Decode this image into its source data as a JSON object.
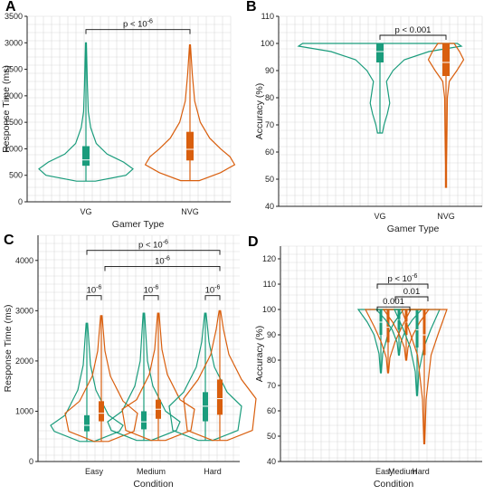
{
  "colors": {
    "vg": "#1a9c7c",
    "nvg": "#d95f0e",
    "grid": "#d9d9d9",
    "axis": "#222222"
  },
  "chart_data": [
    {
      "panel": "A",
      "type": "violin",
      "xlabel": "Gamer Type",
      "ylabel": "Response Time (ms)",
      "ylim": [
        0,
        3500
      ],
      "yticks": [
        0,
        500,
        1000,
        1500,
        2000,
        2500,
        3000,
        3500
      ],
      "grid": true,
      "categories": [
        "VG",
        "NVG"
      ],
      "series": [
        {
          "group": "VG",
          "color": "vg",
          "q1": 680,
          "median": 790,
          "q3": 1050,
          "min": 390,
          "max": 3000,
          "density": [
            [
              390,
              0.2
            ],
            [
              500,
              0.85
            ],
            [
              620,
              1.0
            ],
            [
              750,
              0.8
            ],
            [
              900,
              0.45
            ],
            [
              1100,
              0.22
            ],
            [
              1400,
              0.1
            ],
            [
              1700,
              0.05
            ],
            [
              2200,
              0.03
            ],
            [
              3000,
              0.01
            ]
          ]
        },
        {
          "group": "NVG",
          "color": "nvg",
          "q1": 780,
          "median": 990,
          "q3": 1320,
          "min": 400,
          "max": 2960,
          "density": [
            [
              400,
              0.2
            ],
            [
              550,
              0.65
            ],
            [
              700,
              0.95
            ],
            [
              850,
              0.85
            ],
            [
              1000,
              0.65
            ],
            [
              1200,
              0.42
            ],
            [
              1500,
              0.22
            ],
            [
              1900,
              0.1
            ],
            [
              2400,
              0.05
            ],
            [
              2960,
              0.01
            ]
          ]
        }
      ],
      "annotations": [
        {
          "text": "p < 10",
          "sup": "-6",
          "from": "VG",
          "to": "NVG",
          "y": 3250
        }
      ]
    },
    {
      "panel": "B",
      "type": "violin",
      "xlabel": "Gamer Type",
      "ylabel": "Accuracy (%)",
      "ylim": [
        40,
        110
      ],
      "yticks": [
        40,
        50,
        60,
        70,
        80,
        90,
        100,
        110
      ],
      "grid": true,
      "categories": [
        "VG",
        "NVG"
      ],
      "series": [
        {
          "group": "VG",
          "color": "vg",
          "q1": 93,
          "median": 97,
          "q3": 100,
          "min": 67,
          "max": 100,
          "density": [
            [
              67,
              0.03
            ],
            [
              70,
              0.05
            ],
            [
              74,
              0.09
            ],
            [
              78,
              0.12
            ],
            [
              82,
              0.1
            ],
            [
              86,
              0.08
            ],
            [
              90,
              0.16
            ],
            [
              94,
              0.3
            ],
            [
              97,
              0.6
            ],
            [
              99,
              1.0
            ],
            [
              100,
              0.95
            ]
          ]
        },
        {
          "group": "NVG",
          "color": "nvg",
          "q1": 88,
          "median": 93,
          "q3": 100,
          "min": 47,
          "max": 100,
          "density": [
            [
              47,
              0.02
            ],
            [
              55,
              0.02
            ],
            [
              62,
              0.03
            ],
            [
              70,
              0.04
            ],
            [
              80,
              0.05
            ],
            [
              86,
              0.12
            ],
            [
              90,
              0.4
            ],
            [
              94,
              0.65
            ],
            [
              97,
              0.5
            ],
            [
              100,
              0.3
            ]
          ]
        }
      ],
      "annotations": [
        {
          "text": "p < 0.001",
          "sup": "",
          "from": "VG",
          "to": "NVG",
          "y": 103
        }
      ]
    },
    {
      "panel": "C",
      "type": "violin",
      "xlabel": "Condition",
      "ylabel": "Response Time (ms)",
      "ylim": [
        0,
        4500
      ],
      "yticks": [
        0,
        1000,
        2000,
        3000,
        4000
      ],
      "grid": true,
      "categories": [
        "Easy",
        "Medium",
        "Hard"
      ],
      "series": [
        {
          "group": "Easy",
          "subgroup": "VG",
          "color": "vg",
          "q1": 600,
          "median": 720,
          "q3": 920,
          "min": 400,
          "max": 2750
        },
        {
          "group": "Easy",
          "subgroup": "NVG",
          "color": "nvg",
          "q1": 800,
          "median": 960,
          "q3": 1200,
          "min": 400,
          "max": 2900
        },
        {
          "group": "Medium",
          "subgroup": "VG",
          "color": "vg",
          "q1": 640,
          "median": 790,
          "q3": 1000,
          "min": 420,
          "max": 2950
        },
        {
          "group": "Medium",
          "subgroup": "NVG",
          "color": "nvg",
          "q1": 850,
          "median": 1040,
          "q3": 1230,
          "min": 420,
          "max": 2950
        },
        {
          "group": "Hard",
          "subgroup": "VG",
          "color": "vg",
          "q1": 800,
          "median": 1100,
          "q3": 1380,
          "min": 420,
          "max": 2950
        },
        {
          "group": "Hard",
          "subgroup": "NVG",
          "color": "nvg",
          "q1": 930,
          "median": 1250,
          "q3": 1630,
          "min": 420,
          "max": 3000
        }
      ],
      "annotations": [
        {
          "text": "p < 10",
          "sup": "-6",
          "from": "Easy",
          "to": "Hard",
          "y": 4200
        },
        {
          "text": "10",
          "sup": "-6",
          "from": "Easy-NVG",
          "to": "Hard",
          "y": 3880
        },
        {
          "text": "10",
          "sup": "-6",
          "pair": "Easy",
          "y": 3300
        },
        {
          "text": "10",
          "sup": "-6",
          "pair": "Medium",
          "y": 3300
        },
        {
          "text": "10",
          "sup": "-6",
          "pair": "Hard",
          "y": 3300
        }
      ]
    },
    {
      "panel": "D",
      "type": "violin",
      "xlabel": "Condition",
      "ylabel": "Accuracy (%)",
      "ylim": [
        40,
        125
      ],
      "yticks": [
        40,
        50,
        60,
        70,
        80,
        90,
        100,
        110,
        120
      ],
      "grid": true,
      "categories": [
        "Easy",
        "Medium",
        "Hard"
      ],
      "series": [
        {
          "group": "Easy",
          "subgroup": "VG",
          "color": "vg",
          "q1": 90,
          "median": 95,
          "q3": 100,
          "min": 75,
          "max": 100
        },
        {
          "group": "Easy",
          "subgroup": "NVG",
          "color": "nvg",
          "q1": 87,
          "median": 93,
          "q3": 100,
          "min": 75,
          "max": 100
        },
        {
          "group": "Medium",
          "subgroup": "VG",
          "color": "vg",
          "q1": 92,
          "median": 96,
          "q3": 100,
          "min": 82,
          "max": 100
        },
        {
          "group": "Medium",
          "subgroup": "NVG",
          "color": "nvg",
          "q1": 90,
          "median": 95,
          "q3": 100,
          "min": 80,
          "max": 100
        },
        {
          "group": "Hard",
          "subgroup": "VG",
          "color": "vg",
          "q1": 85,
          "median": 92,
          "q3": 100,
          "min": 66,
          "max": 100
        },
        {
          "group": "Hard",
          "subgroup": "NVG",
          "color": "nvg",
          "q1": 82,
          "median": 90,
          "q3": 100,
          "min": 47,
          "max": 100
        }
      ],
      "annotations": [
        {
          "text": "p < 10",
          "sup": "-6",
          "from": "Easy",
          "to": "Hard",
          "y": 110
        },
        {
          "text": "0.01",
          "sup": "",
          "from": "Medium",
          "to": "Hard",
          "y": 105
        },
        {
          "text": "0.001",
          "sup": "",
          "from": "Easy",
          "to": "Medium",
          "y": 101
        }
      ]
    }
  ]
}
